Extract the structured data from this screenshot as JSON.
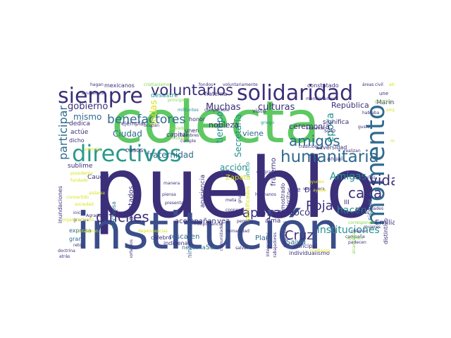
{
  "wordcloud": {
    "palette": {
      "purple": "#440154",
      "indigo": "#3b2f7a",
      "blue": "#2f6a8e",
      "teal": "#21918c",
      "green": "#35b779",
      "lime": "#86d549",
      "yellow": "#d8e219"
    },
    "words": [
      {
        "text": "pueblo",
        "color": "#3b2f7a"
      },
      {
        "text": "colecta",
        "color": "#5ec962"
      },
      {
        "text": "institución",
        "color": "#3b4d8a"
      },
      {
        "text": "directivos",
        "color": "#2a9a8a"
      },
      {
        "text": "solidaridad",
        "color": "#3b2f7a"
      },
      {
        "text": "siempre",
        "color": "#3b2f7a"
      },
      {
        "text": "momento",
        "color": "#2f6a8e"
      },
      {
        "text": "humanitaria",
        "color": "#2f6a8e"
      },
      {
        "text": "voluntarios",
        "color": "#3b2f7a"
      },
      {
        "text": "benefactores",
        "color": "#2f6a8e"
      },
      {
        "text": "amigos",
        "color": "#2f6a8e"
      },
      {
        "text": "participar",
        "color": "#2f6a8e"
      },
      {
        "text": "difíciles",
        "color": "#3b2f7a"
      },
      {
        "text": "apoyar",
        "color": "#3b2f7a"
      },
      {
        "text": "cada",
        "color": "#3b2f7a"
      },
      {
        "text": "vida",
        "color": "#3b2f7a"
      },
      {
        "text": "Cruz",
        "color": "#3b2f7a"
      },
      {
        "text": "Roja",
        "color": "#3b2f7a"
      },
      {
        "text": "instituciones",
        "color": "#21918c"
      },
      {
        "text": "Amigas",
        "color": "#21918c"
      },
      {
        "text": "hacen",
        "color": "#21918c"
      },
      {
        "text": "época",
        "color": "#21918c"
      },
      {
        "text": "gobierno",
        "color": "#3b2f7a"
      },
      {
        "text": "Muchas",
        "color": "#3b2f7a"
      },
      {
        "text": "culturas",
        "color": "#3b2f7a"
      },
      {
        "text": "República",
        "color": "#3b2f7a"
      },
      {
        "text": "mismo",
        "color": "#2f6a8e"
      },
      {
        "text": "Ciudad",
        "color": "#2f6a8e"
      },
      {
        "text": "tiempo",
        "color": "#21918c"
      },
      {
        "text": "acción",
        "color": "#21918c"
      },
      {
        "text": "convoco",
        "color": "#3b2f7a"
      },
      {
        "text": "fraternidad",
        "color": "#2f6a8e"
      },
      {
        "text": "Secretaría",
        "color": "#21918c"
      },
      {
        "text": "todas",
        "color": "#d8e219"
      },
      {
        "text": "nobleza",
        "color": "#3b2f7a"
      },
      {
        "text": "ceremonia",
        "color": "#3b2f7a"
      },
      {
        "text": "viene",
        "color": "#2f6a8e"
      },
      {
        "text": "fraterno",
        "color": "#3b2f7a"
      },
      {
        "text": "Zapata",
        "color": "#d8e219"
      },
      {
        "text": "Salud",
        "color": "#2f6a8e"
      },
      {
        "text": "Plan",
        "color": "#2f6a8e"
      },
      {
        "text": "Sur",
        "color": "#2f6a8e"
      },
      {
        "text": "Emiliano",
        "color": "#3b2f7a"
      },
      {
        "text": "DN",
        "color": "#3b2f7a"
      },
      {
        "text": "III",
        "color": "#3b2f7a"
      },
      {
        "text": "sismos",
        "color": "#2f6a8e"
      },
      {
        "text": "vive",
        "color": "#3b2f7a"
      },
      {
        "text": "alma",
        "color": "#3b2f7a"
      },
      {
        "text": "vez",
        "color": "#3b2f7a"
      },
      {
        "text": "rescaten",
        "color": "#2f6a8e"
      },
      {
        "text": "acompañan",
        "color": "#3b2f7a"
      },
      {
        "text": "apariencia",
        "color": "#3b2f7a"
      },
      {
        "text": "predomina",
        "color": "#2f6a8e"
      },
      {
        "text": "necesita",
        "color": "#2f6a8e"
      },
      {
        "text": "celebro",
        "color": "#3b2f7a"
      },
      {
        "text": "indígenas",
        "color": "#3b2f7a"
      },
      {
        "text": "afectados",
        "color": "#3b2f7a"
      },
      {
        "text": "solidario",
        "color": "#3b2f7a"
      },
      {
        "text": "casos",
        "color": "#3b2f7a"
      },
      {
        "text": "sublime",
        "color": "#3b2f7a"
      },
      {
        "text": "Caudillo",
        "color": "#3b2f7a"
      },
      {
        "text": "afectuosa",
        "color": "#2f6a8e"
      },
      {
        "text": "capital",
        "color": "#3b2f7a"
      },
      {
        "text": "desastre",
        "color": "#21918c"
      },
      {
        "text": "unen",
        "color": "#3b2f7a"
      },
      {
        "text": "honor",
        "color": "#3b2f7a"
      },
      {
        "text": "ejemplar",
        "color": "#3b2f7a"
      },
      {
        "text": "dedica",
        "color": "#3b2f7a"
      },
      {
        "text": "actúe",
        "color": "#3b2f7a"
      },
      {
        "text": "dicho",
        "color": "#3b2f7a"
      },
      {
        "text": "inundaciones",
        "color": "#3b2f7a"
      },
      {
        "text": "expresa",
        "color": "#2f6a8e"
      },
      {
        "text": "gran",
        "color": "#2f6a8e"
      },
      {
        "text": "mexicanos",
        "color": "#3b2f7a"
      },
      {
        "text": "significa",
        "color": "#3b2f7a"
      },
      {
        "text": "anual",
        "color": "#3b2f7a"
      },
      {
        "text": "adversidad",
        "color": "#3b2f7a"
      },
      {
        "text": "sólo",
        "color": "#3b2f7a"
      },
      {
        "text": "Marina",
        "color": "#3b2f7a"
      },
      {
        "text": "distintivo",
        "color": "#3b2f7a"
      },
      {
        "text": "principal",
        "color": "#3b2f7a"
      },
      {
        "text": "individualismo",
        "color": "#3b2f7a"
      },
      {
        "text": "demostrado",
        "color": "#3b2f7a"
      },
      {
        "text": "Ejército",
        "color": "#3b2f7a"
      },
      {
        "text": "identificados",
        "color": "#d8e219"
      },
      {
        "text": "inicio",
        "color": "#21918c"
      },
      {
        "text": "constatado",
        "color": "#3b2f7a"
      },
      {
        "text": "visto",
        "color": "#3b2f7a"
      },
      {
        "text": "fraterna",
        "color": "#3b2f7a"
      },
      {
        "text": "tradición",
        "color": "#3b2f7a"
      },
      {
        "text": "hagan",
        "color": "#3b2f7a"
      },
      {
        "text": "fondos",
        "color": "#3b2f7a"
      },
      {
        "text": "voluntariamente",
        "color": "#3b2f7a"
      },
      {
        "text": "civil",
        "color": "#3b2f7a"
      },
      {
        "text": "áreas",
        "color": "#3b2f7a"
      },
      {
        "text": "une",
        "color": "#3b2f7a"
      },
      {
        "text": "ayudarnos",
        "color": "#3b2f7a"
      },
      {
        "text": "ocupan",
        "color": "#3b2f7a"
      },
      {
        "text": "hermanos",
        "color": "#3b2f7a"
      },
      {
        "text": "desgracias",
        "color": "#3b2f7a"
      },
      {
        "text": "Agradecer",
        "color": "#3b2f7a"
      },
      {
        "text": "iniciar",
        "color": "#3b2f7a"
      },
      {
        "text": "retos",
        "color": "#3b2f7a"
      },
      {
        "text": "gracias",
        "color": "#3b2f7a"
      },
      {
        "text": "doctrina",
        "color": "#3b2f7a"
      },
      {
        "text": "atrás",
        "color": "#3b2f7a"
      },
      {
        "text": "aportemos",
        "color": "#3b2f7a"
      },
      {
        "text": "comunidades",
        "color": "#3b2f7a"
      },
      {
        "text": "salvar",
        "color": "#3b2f7a"
      },
      {
        "text": "campaña",
        "color": "#3b2f7a"
      },
      {
        "text": "padecen",
        "color": "#3b2f7a"
      },
      {
        "text": "obtener",
        "color": "#3b2f7a"
      },
      {
        "text": "mujeres",
        "color": "#3b2f7a"
      },
      {
        "text": "responsables",
        "color": "#3b2f7a"
      },
      {
        "text": "adversidades",
        "color": "#3b2f7a"
      },
      {
        "text": "verdadera",
        "color": "#3b2f7a"
      },
      {
        "text": "mejores",
        "color": "#3b2f7a"
      },
      {
        "text": "grupos",
        "color": "#3b2f7a"
      },
      {
        "text": "comparable",
        "color": "#3b2f7a"
      },
      {
        "text": "griego",
        "color": "#21918c"
      },
      {
        "text": "piensa",
        "color": "#3b2f7a"
      },
      {
        "text": "presentan",
        "color": "#3b2f7a"
      },
      {
        "text": "trabajadores",
        "color": "#3b2f7a"
      },
      {
        "text": "integrantes",
        "color": "#3b2f7a"
      },
      {
        "text": "cooperar",
        "color": "#3b2f7a"
      },
      {
        "text": "meta",
        "color": "#3b2f7a"
      },
      {
        "text": "manera",
        "color": "#3b2f7a"
      },
      {
        "text": "hombres",
        "color": "#3b2f7a"
      },
      {
        "text": "cumple",
        "color": "#3b2f7a"
      },
      {
        "text": "salvado",
        "color": "#86d549"
      },
      {
        "text": "dudas",
        "color": "#86d549"
      },
      {
        "text": "empresarias",
        "color": "#3b2f7a"
      },
      {
        "text": "hablaba",
        "color": "#3b2f7a"
      },
      {
        "text": "gusto",
        "color": "#3b2f7a"
      },
      {
        "text": "adelante",
        "color": "#3b2f7a"
      },
      {
        "text": "cristianismo",
        "color": "#86d549"
      },
      {
        "text": "principio",
        "color": "#86d549"
      },
      {
        "text": "práctica",
        "color": "#86d549"
      },
      {
        "text": "aporten",
        "color": "#86d549"
      },
      {
        "text": "alcanzaría",
        "color": "#86d549"
      },
      {
        "text": "corresponde",
        "color": "#86d549"
      },
      {
        "text": "ayuden",
        "color": "#d8e219"
      },
      {
        "text": "ayuda",
        "color": "#d8e219"
      },
      {
        "text": "esencia",
        "color": "#d8e219"
      },
      {
        "text": "aislarse",
        "color": "#d8e219"
      },
      {
        "text": "convertido",
        "color": "#d8e219"
      },
      {
        "text": "sociedad",
        "color": "#d8e219"
      },
      {
        "text": "fundado",
        "color": "#d8e219"
      },
      {
        "text": "organizaciones",
        "color": "#d8e219"
      },
      {
        "text": "colaboran",
        "color": "#d8e219"
      },
      {
        "text": "dependencias",
        "color": "#d8e219"
      },
      {
        "text": "presidente",
        "color": "#d8e219"
      },
      {
        "text": "alcance",
        "color": "#d8e219"
      },
      {
        "text": "empeño",
        "color": "#d8e219"
      },
      {
        "text": "confianza",
        "color": "#d8e219"
      },
      {
        "text": "millones",
        "color": "#d8e219"
      },
      {
        "text": "militantes",
        "color": "#21918c"
      },
      {
        "text": "mencionamos",
        "color": "#3b2f7a"
      },
      {
        "text": "campañas",
        "color": "#3b2f7a"
      },
      {
        "text": "realizan",
        "color": "#3b2f7a"
      },
      {
        "text": "humanidad",
        "color": "#3b2f7a"
      },
      {
        "text": "permite",
        "color": "#3b2f7a"
      },
      {
        "text": "importancia",
        "color": "#3b2f7a"
      }
    ]
  }
}
